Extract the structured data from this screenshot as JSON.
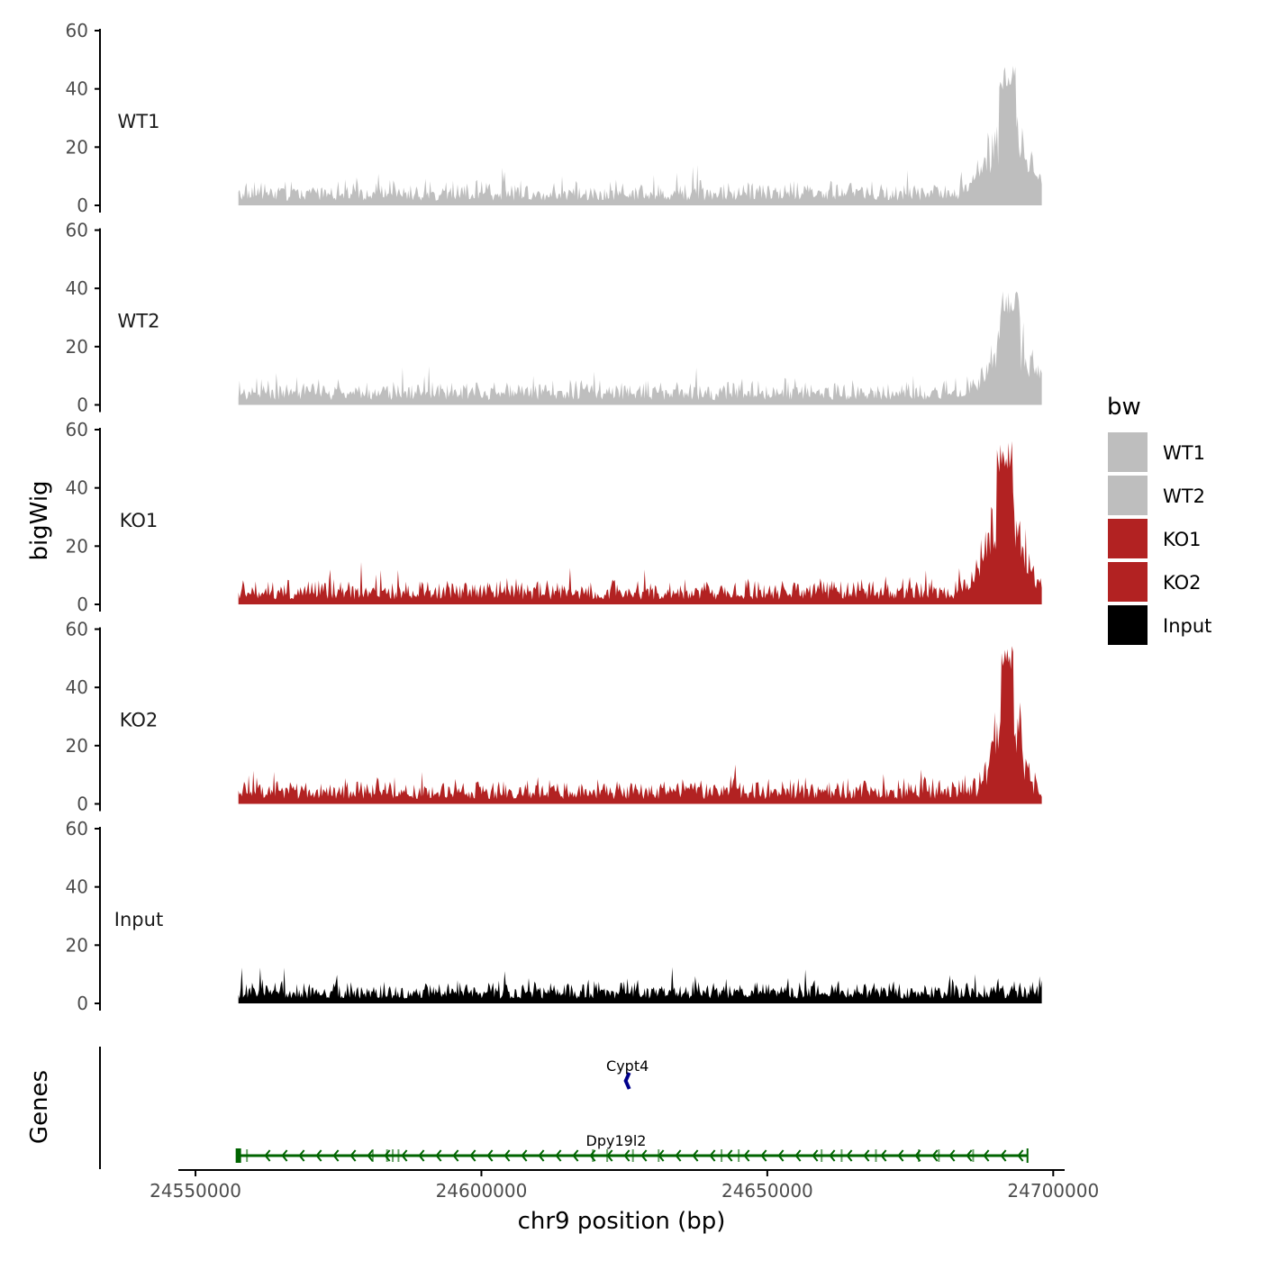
{
  "chart_data": {
    "type": "area",
    "title": "",
    "ylabel": "bigWig",
    "xlabel": "chr9 position (bp)",
    "xlim": [
      24547000,
      24702000
    ],
    "ylim": [
      0,
      60
    ],
    "yticks": [
      0,
      20,
      40,
      60
    ],
    "xticks": [
      24550000,
      24600000,
      24650000,
      24700000
    ],
    "xtick_labels": [
      "24550000",
      "24600000",
      "24650000",
      "24700000"
    ],
    "data_range": [
      24557500,
      24698000
    ],
    "series": [
      {
        "name": "WT1",
        "color": "#bebebe",
        "baseline": 4,
        "noise": 8,
        "peak": {
          "center": 24692000,
          "width": 4500,
          "height": 34
        },
        "peak_label_value": 48
      },
      {
        "name": "WT2",
        "color": "#bebebe",
        "baseline": 4,
        "noise": 8,
        "peak": {
          "center": 24692500,
          "width": 4500,
          "height": 28
        },
        "peak_label_value": 39
      },
      {
        "name": "KO1",
        "color": "#b22222",
        "baseline": 4,
        "noise": 8,
        "peak": {
          "center": 24691500,
          "width": 4000,
          "height": 44
        },
        "peak_label_value": 57
      },
      {
        "name": "KO2",
        "color": "#b22222",
        "baseline": 4,
        "noise": 8,
        "peak": {
          "center": 24692000,
          "width": 3000,
          "height": 44
        },
        "peak_label_value": 55
      },
      {
        "name": "Input",
        "color": "#000000",
        "baseline": 4,
        "noise": 7,
        "peak": null,
        "peak_label_value": 13
      }
    ],
    "legend": {
      "title": "bw",
      "position": "right",
      "entries": [
        {
          "label": "WT1",
          "color": "#bebebe"
        },
        {
          "label": "WT2",
          "color": "#bebebe"
        },
        {
          "label": "KO1",
          "color": "#b22222"
        },
        {
          "label": "KO2",
          "color": "#b22222"
        },
        {
          "label": "Input",
          "color": "#000000"
        }
      ]
    },
    "genes_track": {
      "ylabel": "Genes",
      "genes": [
        {
          "name": "Cypt4",
          "start": 24625200,
          "end": 24625900,
          "strand": "-",
          "color": "#00008b",
          "row": 0
        },
        {
          "name": "Dpy19l2",
          "start": 24557500,
          "end": 24695500,
          "strand": "-",
          "color": "#006400",
          "row": 1,
          "exons": [
            24557500,
            24559000,
            24581000,
            24583500,
            24584500,
            24585500,
            24619500,
            24622000,
            24626500,
            24631000,
            24642000,
            24645000,
            24659500,
            24663000,
            24669000,
            24676500,
            24680000,
            24686000,
            24695500
          ]
        }
      ]
    }
  }
}
